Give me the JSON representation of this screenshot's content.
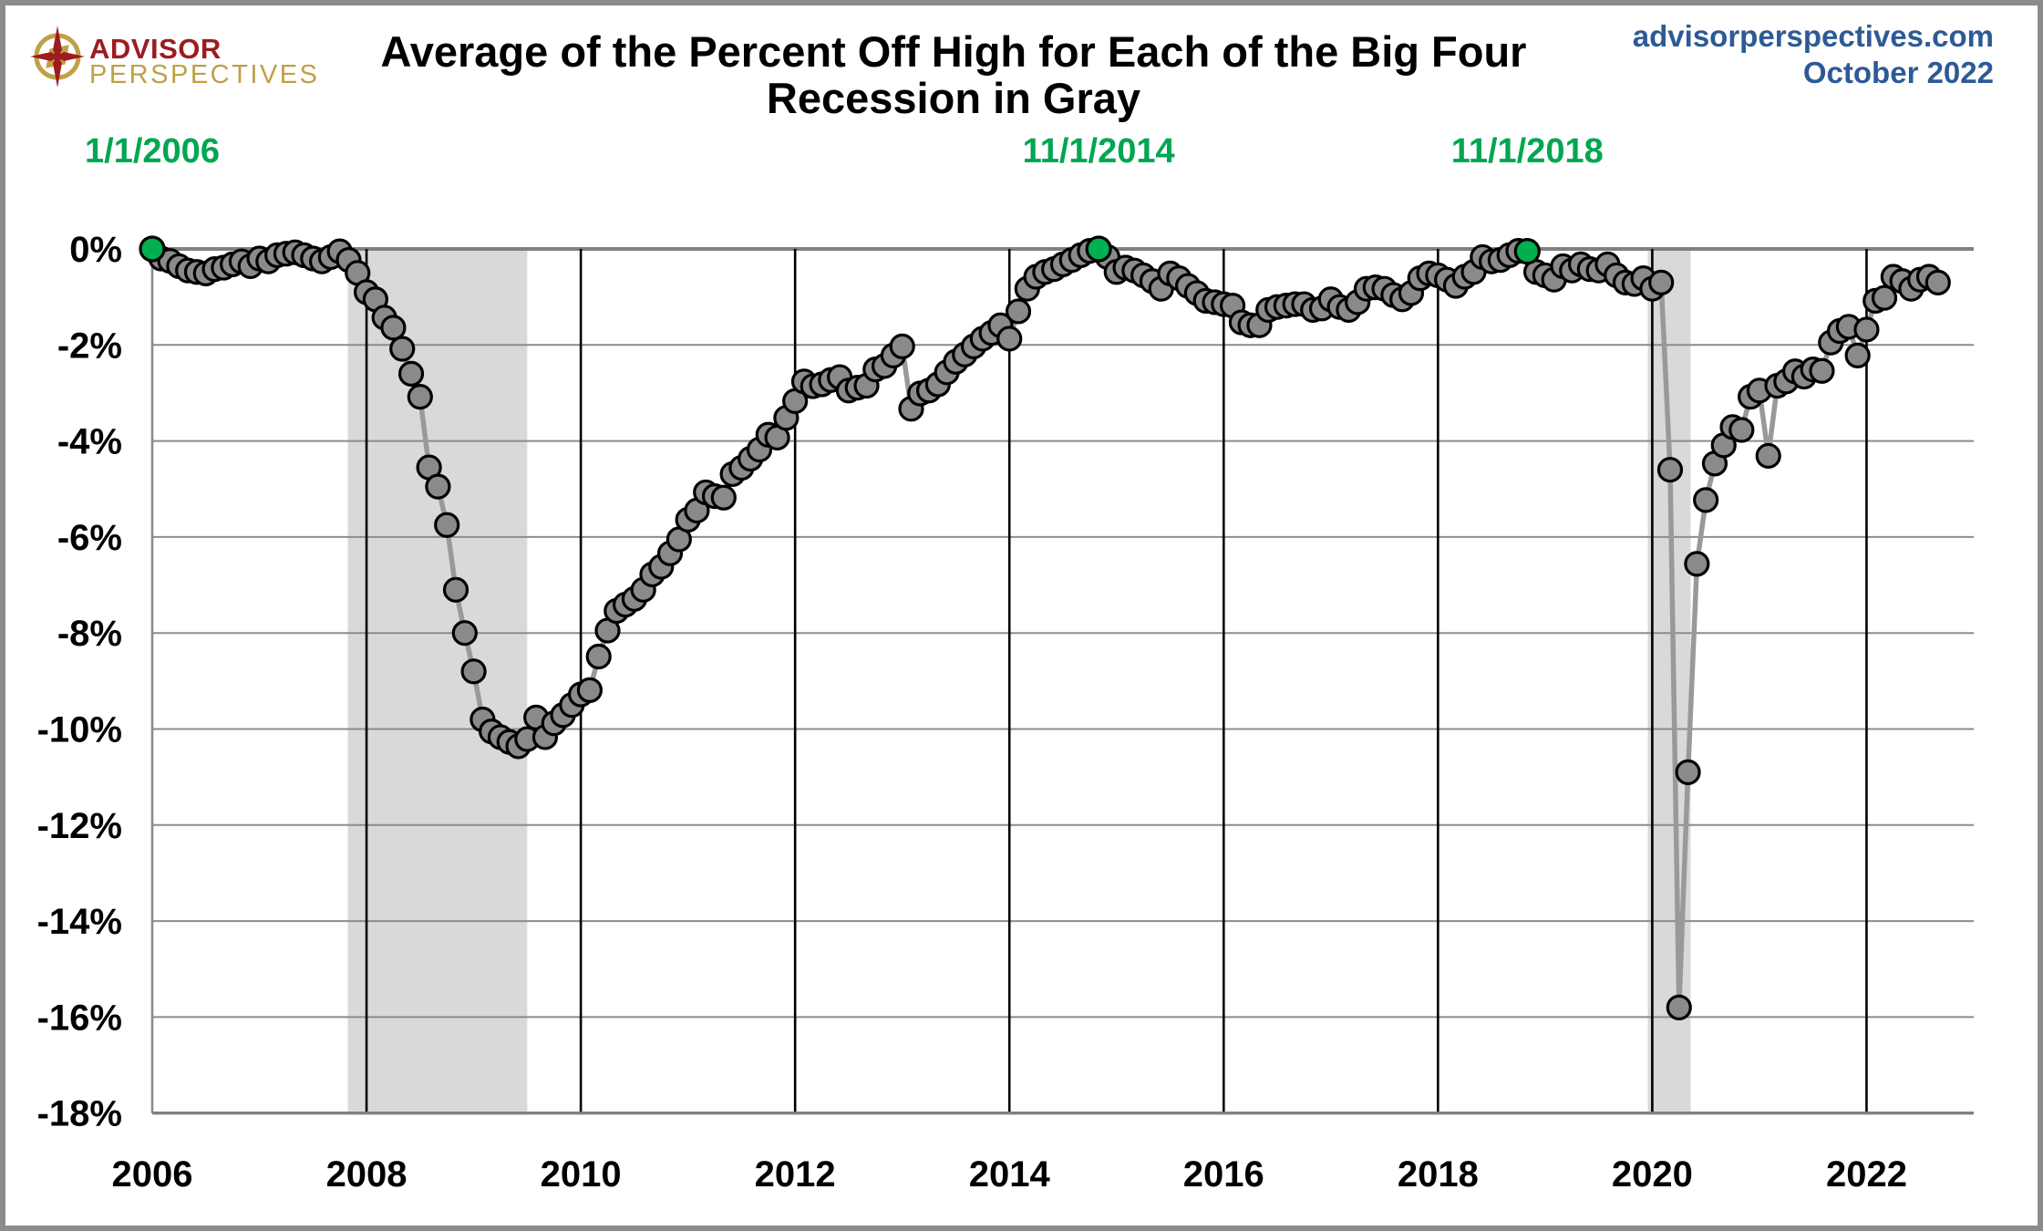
{
  "page": {
    "logo_line1": "ADVISOR",
    "logo_line2": "PERSPECTIVES",
    "title_line1": "Average of the Percent Off High for Each of the Big Four",
    "title_line2": "Recession in Gray",
    "source_site": "advisorperspectives.com",
    "source_date": "October 2022"
  },
  "chart_data": {
    "type": "line",
    "title": "Average of the Percent Off High for Each of the Big Four",
    "subtitle": "Recession in Gray",
    "frequency": "monthly",
    "x_start_month": "2006-01",
    "x_end_month": "2022-09",
    "unit": "percent off high",
    "ylim": [
      -18,
      0
    ],
    "xlim_years": [
      2006,
      2023
    ],
    "grid": true,
    "ytick_labels": [
      "0%",
      "-2%",
      "-4%",
      "-6%",
      "-8%",
      "-10%",
      "-12%",
      "-14%",
      "-16%",
      "-18%"
    ],
    "ytick_values": [
      0,
      -2,
      -4,
      -6,
      -8,
      -10,
      -12,
      -14,
      -16,
      -18
    ],
    "xtick_labels": [
      "2006",
      "2008",
      "2010",
      "2012",
      "2014",
      "2016",
      "2018",
      "2020",
      "2022"
    ],
    "xtick_years": [
      2006,
      2008,
      2010,
      2012,
      2014,
      2016,
      2018,
      2020,
      2022
    ],
    "values": [
      0.0,
      -0.2,
      -0.25,
      -0.36,
      -0.45,
      -0.48,
      -0.51,
      -0.42,
      -0.39,
      -0.32,
      -0.26,
      -0.36,
      -0.2,
      -0.26,
      -0.13,
      -0.1,
      -0.07,
      -0.13,
      -0.2,
      -0.26,
      -0.17,
      -0.05,
      -0.23,
      -0.5,
      -0.9,
      -1.05,
      -1.43,
      -1.64,
      -2.08,
      -2.6,
      -3.08,
      -4.55,
      -4.95,
      -5.75,
      -7.1,
      -8.0,
      -8.8,
      -9.8,
      -10.05,
      -10.17,
      -10.27,
      -10.36,
      -10.21,
      -9.76,
      -10.17,
      -9.88,
      -9.71,
      -9.5,
      -9.28,
      -9.19,
      -8.49,
      -7.95,
      -7.54,
      -7.41,
      -7.29,
      -7.1,
      -6.78,
      -6.62,
      -6.34,
      -6.05,
      -5.64,
      -5.45,
      -5.07,
      -5.15,
      -5.18,
      -4.69,
      -4.56,
      -4.37,
      -4.18,
      -3.87,
      -3.93,
      -3.52,
      -3.17,
      -2.76,
      -2.86,
      -2.82,
      -2.73,
      -2.67,
      -2.95,
      -2.89,
      -2.85,
      -2.51,
      -2.44,
      -2.22,
      -2.03,
      -3.33,
      -3.01,
      -2.95,
      -2.82,
      -2.57,
      -2.35,
      -2.2,
      -2.03,
      -1.87,
      -1.75,
      -1.59,
      -1.87,
      -1.3,
      -0.83,
      -0.58,
      -0.48,
      -0.42,
      -0.32,
      -0.23,
      -0.13,
      -0.04,
      0.0,
      -0.17,
      -0.48,
      -0.39,
      -0.45,
      -0.55,
      -0.67,
      -0.83,
      -0.51,
      -0.61,
      -0.77,
      -0.92,
      -1.08,
      -1.11,
      -1.15,
      -1.18,
      -1.53,
      -1.59,
      -1.59,
      -1.27,
      -1.21,
      -1.18,
      -1.15,
      -1.15,
      -1.27,
      -1.24,
      -1.05,
      -1.21,
      -1.27,
      -1.11,
      -0.83,
      -0.8,
      -0.83,
      -0.96,
      -1.05,
      -0.92,
      -0.61,
      -0.51,
      -0.55,
      -0.64,
      -0.77,
      -0.58,
      -0.48,
      -0.17,
      -0.26,
      -0.23,
      -0.13,
      -0.04,
      -0.05,
      -0.48,
      -0.55,
      -0.64,
      -0.36,
      -0.45,
      -0.32,
      -0.42,
      -0.45,
      -0.32,
      -0.55,
      -0.7,
      -0.73,
      -0.61,
      -0.83,
      -0.7,
      -4.6,
      -15.8,
      -10.9,
      -6.56,
      -5.23,
      -4.47,
      -4.09,
      -3.71,
      -3.77,
      -3.08,
      -2.95,
      -4.31,
      -2.85,
      -2.76,
      -2.55,
      -2.66,
      -2.51,
      -2.54,
      -1.95,
      -1.71,
      -1.62,
      -2.22,
      -1.68,
      -1.08,
      -1.02,
      -0.58,
      -0.67,
      -0.83,
      -0.64,
      -0.58,
      -0.7
    ],
    "highlights": [
      {
        "index": 0,
        "label": "1/1/2006",
        "value": 0.0
      },
      {
        "index": 106,
        "label": "11/1/2014",
        "value": 0.0
      },
      {
        "index": 154,
        "label": "11/1/2018",
        "value": -0.05
      }
    ],
    "recession_bands": [
      {
        "start_month_index": 21.9,
        "end_month_index": 42.0
      },
      {
        "start_month_index": 167.5,
        "end_month_index": 172.3
      }
    ],
    "colors": {
      "dot_fill": "#8a8a8a",
      "dot_stroke": "#000000",
      "line": "#999999",
      "highlight_green": "#00b050",
      "annotation_green": "#00a651",
      "recession_band": "#d9d9d9",
      "gridline": "#8c8c8c",
      "zero_line": "#808080",
      "year_line": "#000000",
      "axis_text": "#000000",
      "header_blue": "#2d5a96",
      "logo_maroon": "#9c1c1f",
      "logo_gold": "#bfa046"
    }
  }
}
